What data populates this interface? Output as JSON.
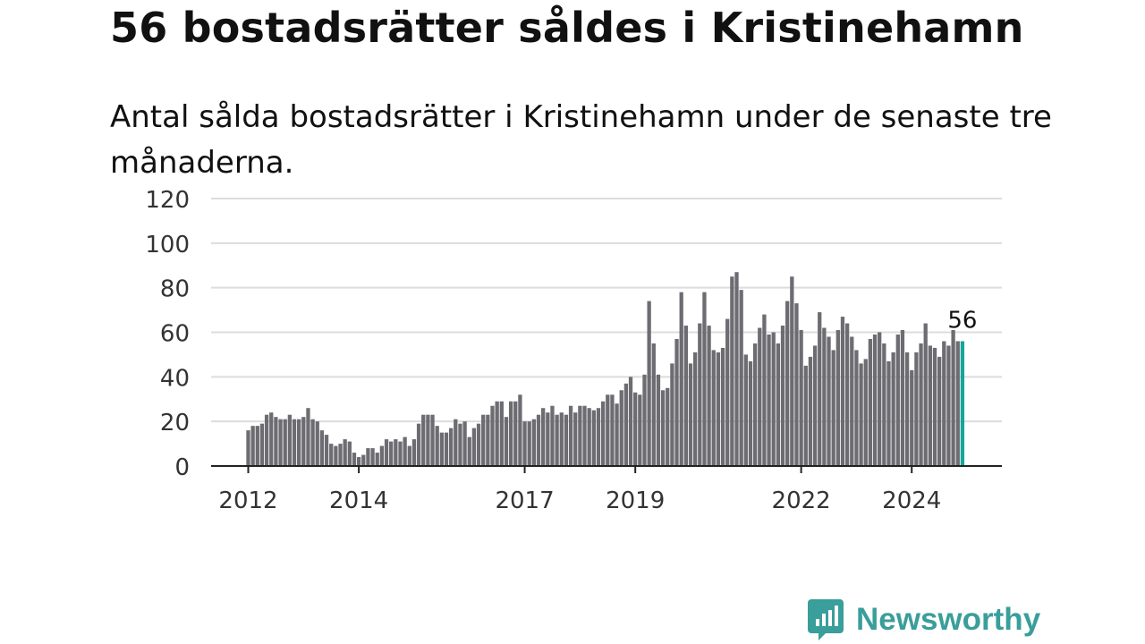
{
  "title": "56 bostadsrätter såldes i Kristinehamn",
  "subtitle": "Antal sålda bostadsrätter i Kristinehamn under de senaste tre månaderna.",
  "brand": {
    "name": "Newsworthy",
    "color": "#3a9e9a"
  },
  "chart_data": {
    "type": "bar",
    "title": "",
    "xlabel": "",
    "ylabel": "",
    "ylim": [
      0,
      120
    ],
    "yticks": [
      0,
      20,
      40,
      60,
      80,
      100,
      120
    ],
    "xticks": [
      "2012",
      "2014",
      "2017",
      "2019",
      "2022",
      "2024"
    ],
    "grid": true,
    "bar_color": "#6d6c72",
    "highlight_color": "#1aa39a",
    "start": "2012-01",
    "values": [
      16,
      18,
      18,
      19,
      23,
      24,
      22,
      21,
      21,
      23,
      21,
      21,
      22,
      26,
      21,
      20,
      16,
      14,
      10,
      9,
      10,
      12,
      11,
      6,
      4,
      5,
      8,
      8,
      6,
      9,
      12,
      11,
      12,
      11,
      13,
      9,
      12,
      19,
      23,
      23,
      23,
      18,
      15,
      15,
      17,
      21,
      19,
      20,
      13,
      17,
      19,
      23,
      23,
      27,
      29,
      29,
      22,
      29,
      29,
      32,
      20,
      20,
      21,
      23,
      26,
      24,
      27,
      23,
      24,
      23,
      27,
      24,
      27,
      27,
      26,
      25,
      26,
      29,
      32,
      32,
      28,
      34,
      37,
      40,
      33,
      32,
      41,
      74,
      55,
      41,
      34,
      35,
      46,
      57,
      78,
      63,
      46,
      51,
      64,
      78,
      63,
      52,
      51,
      53,
      66,
      85,
      87,
      79,
      50,
      47,
      55,
      62,
      68,
      59,
      60,
      55,
      63,
      74,
      85,
      73,
      61,
      45,
      49,
      54,
      69,
      62,
      58,
      52,
      61,
      67,
      64,
      58,
      52,
      46,
      48,
      57,
      59,
      60,
      55,
      47,
      51,
      59,
      61,
      51,
      43,
      51,
      55,
      64,
      54,
      53,
      49,
      56,
      54,
      61,
      56,
      56
    ],
    "last_label": "56"
  }
}
